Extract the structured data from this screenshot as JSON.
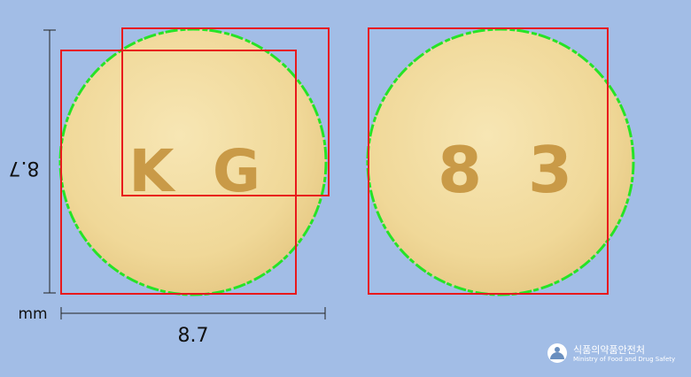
{
  "units": "mm",
  "width_label": "8.7",
  "height_label": "8.7",
  "left_tablet": {
    "imprint_left": "K",
    "imprint_right": "G"
  },
  "right_tablet": {
    "imprint_left": "8",
    "imprint_right": "3"
  },
  "colors": {
    "background": "#a2bde6",
    "tablet": "#f2dca0",
    "imprint": "#c99a47",
    "detection_box": "#e8191c",
    "contour": "#26e326"
  },
  "footer": {
    "title_ko": "식품의약품안전처",
    "title_en": "Ministry of Food and Drug Safety",
    "logo_icon": "mfds-logo-icon"
  }
}
